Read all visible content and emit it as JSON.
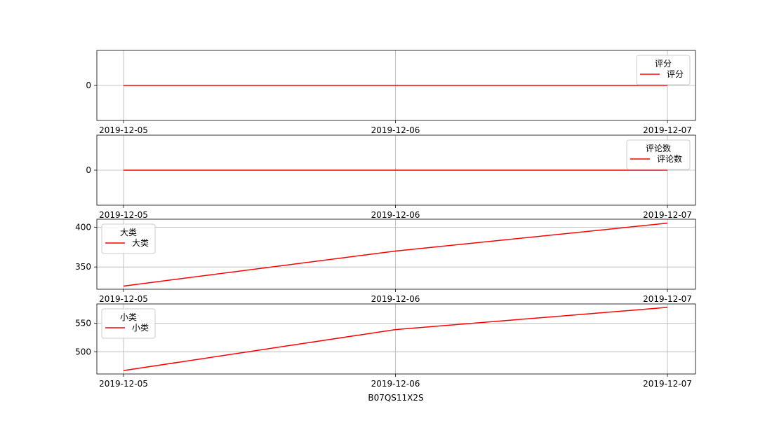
{
  "chart_data": [
    {
      "type": "line",
      "x": [
        "2019-12-05",
        "2019-12-06",
        "2019-12-07"
      ],
      "series": [
        {
          "name": "评分",
          "values": [
            0,
            0,
            0
          ],
          "color": "#ff0000"
        }
      ],
      "yticks": [
        0
      ],
      "ylim": [
        -0.055,
        0.055
      ],
      "legend": {
        "title": "评分",
        "placement": "top-right"
      },
      "grid": true
    },
    {
      "type": "line",
      "x": [
        "2019-12-05",
        "2019-12-06",
        "2019-12-07"
      ],
      "series": [
        {
          "name": "评论数",
          "values": [
            0,
            0,
            0
          ],
          "color": "#ff0000"
        }
      ],
      "yticks": [
        0
      ],
      "ylim": [
        -0.055,
        0.055
      ],
      "legend": {
        "title": "评论数",
        "placement": "top-right"
      },
      "grid": true
    },
    {
      "type": "line",
      "x": [
        "2019-12-05",
        "2019-12-06",
        "2019-12-07"
      ],
      "series": [
        {
          "name": "大类",
          "values": [
            326,
            370,
            405
          ],
          "color": "#ff0000"
        }
      ],
      "yticks": [
        350,
        400
      ],
      "ylim": [
        322,
        410
      ],
      "legend": {
        "title": "大类",
        "placement": "top-left"
      },
      "grid": true
    },
    {
      "type": "line",
      "x": [
        "2019-12-05",
        "2019-12-06",
        "2019-12-07"
      ],
      "series": [
        {
          "name": "小类",
          "values": [
            467,
            539,
            578
          ],
          "color": "#ff0000"
        }
      ],
      "yticks": [
        500,
        550
      ],
      "ylim": [
        461,
        584
      ],
      "legend": {
        "title": "小类",
        "placement": "top-left"
      },
      "grid": true
    }
  ],
  "xlabel": "B07QS11X2S"
}
